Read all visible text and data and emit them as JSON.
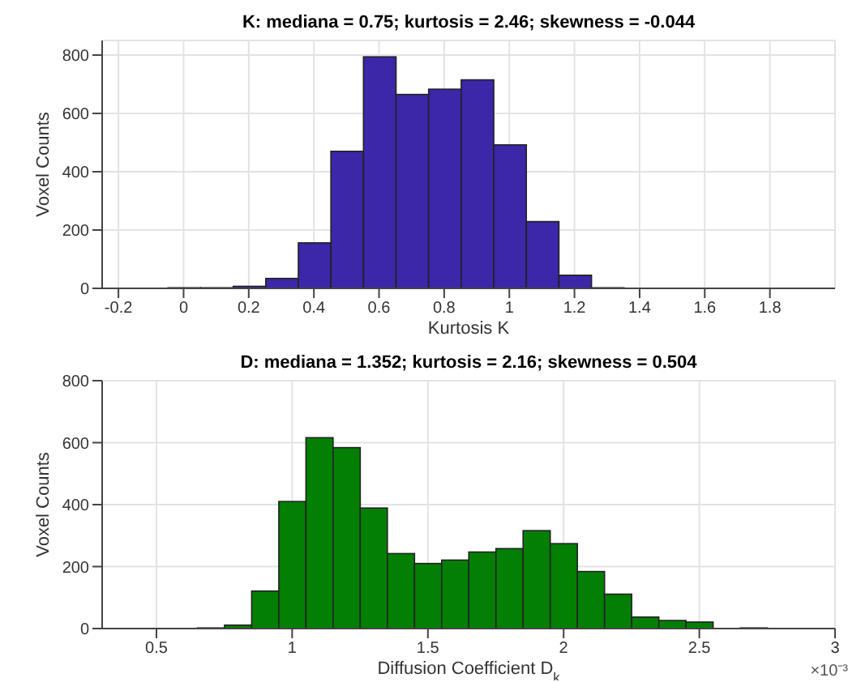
{
  "chart_data": [
    {
      "type": "histogram",
      "title": "K: mediana = 0.75; kurtosis = 2.46; skewness = -0.044",
      "xlabel": "Kurtosis K",
      "ylabel": "Voxel Counts",
      "color": "#3b27a8",
      "bins": [
        -0.05,
        0.05,
        0.15,
        0.25,
        0.35,
        0.45,
        0.55,
        0.65,
        0.75,
        0.85,
        0.95,
        1.05,
        1.15,
        1.25,
        1.35
      ],
      "values": [
        2,
        2,
        7,
        34,
        156,
        470,
        794,
        665,
        683,
        715,
        492,
        229,
        45,
        2
      ],
      "xlim": [
        -0.25,
        2.0
      ],
      "xticks": [
        -0.2,
        0,
        0.2,
        0.4,
        0.6,
        0.8,
        1,
        1.2,
        1.4,
        1.6,
        1.8
      ],
      "ylim": [
        0,
        850
      ],
      "yticks": [
        0,
        200,
        400,
        600,
        800
      ],
      "grid": true
    },
    {
      "type": "histogram",
      "title": "D: mediana = 1.352; kurtosis = 2.16; skewness = 0.504",
      "xlabel": "Diffusion Coefficient D$_{k}$",
      "ylabel": "Voxel Counts",
      "color": "#037f03",
      "annotations": [
        "×10⁻³"
      ],
      "bins": [
        0.65,
        0.75,
        0.85,
        0.95,
        1.05,
        1.15,
        1.25,
        1.35,
        1.45,
        1.55,
        1.65,
        1.75,
        1.85,
        1.95,
        2.05,
        2.15,
        2.25,
        2.35,
        2.45,
        2.55,
        2.65,
        2.75
      ],
      "values": [
        2,
        11,
        121,
        410,
        616,
        584,
        389,
        242,
        210,
        221,
        247,
        258,
        316,
        274,
        184,
        111,
        37,
        26,
        21,
        null,
        2
      ],
      "xlim": [
        0.3,
        3
      ],
      "xticks": [
        0.5,
        1,
        1.5,
        2,
        2.5,
        3
      ],
      "ylim": [
        0,
        800
      ],
      "yticks": [
        0,
        200,
        400,
        600,
        800
      ],
      "grid": true
    }
  ]
}
